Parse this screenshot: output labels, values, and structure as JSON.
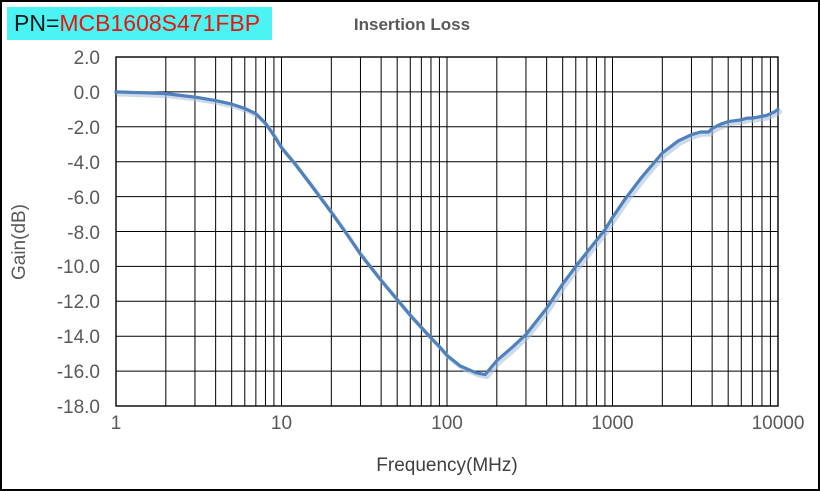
{
  "pn_label": {
    "prefix": "PN=",
    "part_number": "MCB1608S471FBP",
    "bg_color": "#4bf3f3",
    "prefix_color": "#1a1a1a",
    "part_color": "#e8150d"
  },
  "chart_data": {
    "type": "line",
    "title": "Insertion Loss",
    "xlabel": "Frequency(MHz)",
    "ylabel": "Gain(dB)",
    "x_scale": "log",
    "xlim": [
      1,
      10000
    ],
    "ylim": [
      -18,
      2
    ],
    "y_tick_step": 2,
    "x_tick_labels": [
      "1",
      "10",
      "100",
      "1000",
      "10000"
    ],
    "y_tick_labels": [
      "2.0",
      "0.0",
      "-2.0",
      "-4.0",
      "-6.0",
      "-8.0",
      "-10.0",
      "-12.0",
      "-14.0",
      "-16.0",
      "-18.0"
    ],
    "grid": "on (log minor verticals, 2 dB horizontals)",
    "legend": "none",
    "line_color": "#4f81bd",
    "line_shadow_color": "#a3bcd9",
    "grid_color": "#000000",
    "series": [
      {
        "name": "Insertion Loss",
        "points": [
          [
            1,
            0.0
          ],
          [
            1.5,
            -0.05
          ],
          [
            2,
            -0.1
          ],
          [
            3,
            -0.3
          ],
          [
            4,
            -0.5
          ],
          [
            5,
            -0.7
          ],
          [
            6,
            -0.95
          ],
          [
            7,
            -1.25
          ],
          [
            8,
            -1.8
          ],
          [
            9,
            -2.5
          ],
          [
            10,
            -3.2
          ],
          [
            12,
            -4.1
          ],
          [
            15,
            -5.3
          ],
          [
            20,
            -6.9
          ],
          [
            25,
            -8.2
          ],
          [
            30,
            -9.3
          ],
          [
            40,
            -10.8
          ],
          [
            50,
            -11.9
          ],
          [
            60,
            -12.8
          ],
          [
            70,
            -13.5
          ],
          [
            80,
            -14.1
          ],
          [
            90,
            -14.6
          ],
          [
            100,
            -15.1
          ],
          [
            120,
            -15.7
          ],
          [
            150,
            -16.1
          ],
          [
            170,
            -16.2
          ],
          [
            200,
            -15.4
          ],
          [
            250,
            -14.6
          ],
          [
            300,
            -13.9
          ],
          [
            400,
            -12.4
          ],
          [
            500,
            -11.0
          ],
          [
            600,
            -10.0
          ],
          [
            700,
            -9.2
          ],
          [
            800,
            -8.5
          ],
          [
            900,
            -7.9
          ],
          [
            1000,
            -7.2
          ],
          [
            1200,
            -6.1
          ],
          [
            1500,
            -4.9
          ],
          [
            2000,
            -3.5
          ],
          [
            2500,
            -2.8
          ],
          [
            3000,
            -2.45
          ],
          [
            3400,
            -2.3
          ],
          [
            3800,
            -2.3
          ],
          [
            4000,
            -2.1
          ],
          [
            4500,
            -1.85
          ],
          [
            5000,
            -1.7
          ],
          [
            5500,
            -1.65
          ],
          [
            6000,
            -1.6
          ],
          [
            6500,
            -1.5
          ],
          [
            7000,
            -1.5
          ],
          [
            7500,
            -1.45
          ],
          [
            8000,
            -1.4
          ],
          [
            8500,
            -1.35
          ],
          [
            9000,
            -1.25
          ],
          [
            9500,
            -1.15
          ],
          [
            10000,
            -1.0
          ]
        ]
      }
    ]
  }
}
